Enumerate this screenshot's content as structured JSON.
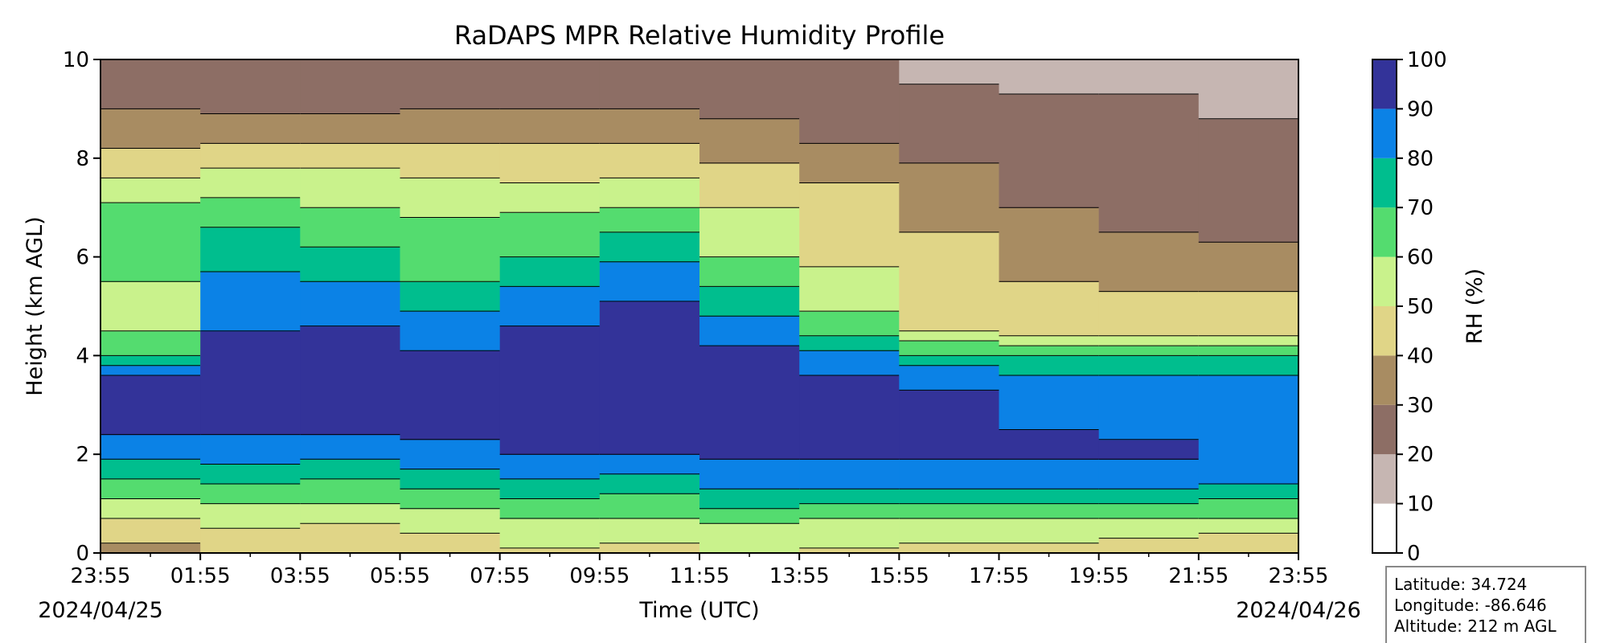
{
  "chart_data": {
    "type": "heatmap",
    "title": "RaDAPS MPR Relative Humidity Profile",
    "xlabel": "Time (UTC)",
    "ylabel": "Height (km AGL)",
    "x_ticks": [
      "23:55",
      "01:55",
      "03:55",
      "05:55",
      "07:55",
      "09:55",
      "11:55",
      "13:55",
      "15:55",
      "17:55",
      "19:55",
      "21:55",
      "23:55"
    ],
    "start_date": "2024/04/25",
    "end_date": "2024/04/26",
    "ylim": [
      0,
      10
    ],
    "y_ticks": [
      "0",
      "2",
      "4",
      "6",
      "8",
      "10"
    ],
    "colorbar": {
      "label": "RH (%)",
      "levels": [
        0,
        10,
        20,
        30,
        40,
        50,
        60,
        70,
        80,
        90,
        100
      ],
      "tick_labels": [
        "0",
        "10",
        "20",
        "30",
        "40",
        "50",
        "60",
        "70",
        "80",
        "90",
        "100"
      ],
      "colors": [
        "#ffffff",
        "#c6b6b2",
        "#8d6e65",
        "#a88c62",
        "#e0d587",
        "#c9f28c",
        "#54dc6f",
        "#00be8e",
        "#0b82e6",
        "#333399"
      ]
    },
    "rh_profile": {
      "heights_km": [
        0,
        0.5,
        1,
        1.5,
        2,
        2.5,
        3,
        3.5,
        4,
        4.5,
        5,
        5.5,
        6,
        6.5,
        7,
        7.5,
        8,
        8.5,
        9,
        9.5,
        10
      ],
      "columns": [
        {
          "time": "00:55",
          "rh": [
            35,
            45,
            58,
            70,
            82,
            92,
            95,
            93,
            70,
            60,
            58,
            60,
            63,
            68,
            62,
            52,
            44,
            35,
            30,
            25,
            22
          ]
        },
        {
          "time": "02:55",
          "rh": [
            42,
            50,
            60,
            72,
            84,
            92,
            95,
            94,
            91,
            90,
            88,
            82,
            76,
            72,
            64,
            55,
            46,
            35,
            28,
            24,
            22
          ]
        },
        {
          "time": "04:55",
          "rh": [
            40,
            48,
            60,
            70,
            82,
            92,
            95,
            94,
            90,
            92,
            85,
            80,
            72,
            66,
            60,
            55,
            45,
            35,
            28,
            24,
            22
          ]
        },
        {
          "time": "06:55",
          "rh": [
            45,
            52,
            62,
            75,
            85,
            94,
            96,
            95,
            91,
            85,
            78,
            70,
            65,
            62,
            58,
            52,
            45,
            37,
            30,
            25,
            22
          ]
        },
        {
          "time": "08:55",
          "rh": [
            48,
            55,
            68,
            80,
            90,
            94,
            96,
            95,
            93,
            92,
            85,
            78,
            70,
            65,
            58,
            50,
            44,
            36,
            30,
            25,
            22
          ]
        },
        {
          "time": "10:55",
          "rh": [
            45,
            55,
            65,
            78,
            90,
            95,
            96,
            95,
            93,
            92,
            92,
            85,
            78,
            70,
            60,
            52,
            44,
            36,
            30,
            25,
            22
          ]
        },
        {
          "time": "12:55",
          "rh": [
            50,
            58,
            72,
            85,
            92,
            95,
            96,
            95,
            93,
            85,
            75,
            68,
            60,
            55,
            50,
            45,
            38,
            32,
            28,
            24,
            22
          ]
        },
        {
          "time": "14:55",
          "rh": [
            48,
            55,
            70,
            85,
            92,
            95,
            96,
            93,
            82,
            68,
            58,
            52,
            48,
            46,
            44,
            40,
            32,
            28,
            25,
            22,
            20
          ]
        },
        {
          "time": "16:55",
          "rh": [
            45,
            55,
            70,
            85,
            92,
            93,
            94,
            88,
            72,
            50,
            48,
            45,
            42,
            40,
            38,
            35,
            28,
            26,
            22,
            20,
            19
          ]
        },
        {
          "time": "18:55",
          "rh": [
            45,
            55,
            70,
            85,
            92,
            90,
            88,
            82,
            70,
            45,
            44,
            40,
            36,
            32,
            30,
            28,
            26,
            24,
            21,
            19,
            18
          ]
        },
        {
          "time": "20:55",
          "rh": [
            40,
            55,
            70,
            85,
            92,
            88,
            84,
            82,
            70,
            45,
            42,
            38,
            35,
            30,
            28,
            27,
            25,
            24,
            21,
            19,
            18
          ]
        },
        {
          "time": "22:55",
          "rh": [
            40,
            52,
            68,
            82,
            88,
            88,
            84,
            82,
            70,
            45,
            42,
            38,
            33,
            28,
            26,
            25,
            23,
            21,
            19,
            18,
            17
          ]
        }
      ]
    },
    "location": {
      "latitude": "Latitude: 34.724",
      "longitude": "Longitude: -86.646",
      "altitude": "Altitude: 212 m AGL"
    }
  }
}
